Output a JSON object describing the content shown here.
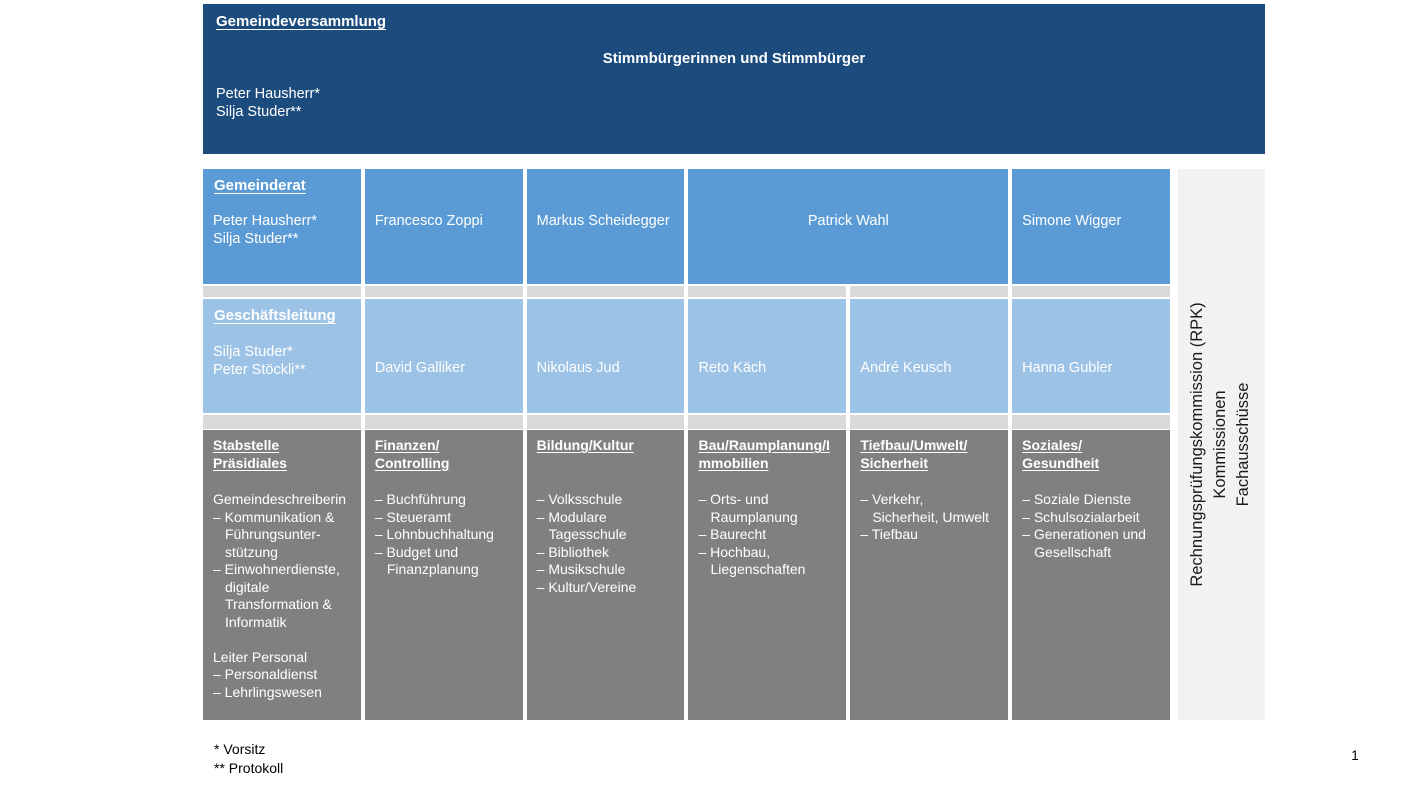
{
  "banner": {
    "title": "Gemeindeversammlung",
    "subtitle": "Stimmbürgerinnen und Stimmbürger",
    "names": [
      "Peter Hausherr*",
      "Silja Studer**"
    ]
  },
  "gemeinderat": {
    "title": "Gemeinderat",
    "leads": [
      "Peter Hausherr*",
      "Silja Studer**"
    ],
    "member2": "Francesco Zoppi",
    "member3": "Markus Scheidegger",
    "member4": "Patrick Wahl",
    "member5": "Simone Wigger"
  },
  "geschaeftsleitung": {
    "title": "Geschäftsleitung",
    "leads": [
      "Silja Studer*",
      "Peter Stöckli**"
    ],
    "member2": "David Galliker",
    "member3": "Nikolaus Jud",
    "member4": "Reto Käch",
    "member5": "André Keusch",
    "member6": "Hanna Gubler"
  },
  "departments": [
    {
      "title": [
        "Stabstelle",
        "Präsidiales"
      ],
      "items": [
        "Gemeindeschreiberin",
        "– Kommunikation &\nFührungsunter-\nstützung",
        "– Einwohnerdienste,\ndigitale\nTransformation &\nInformatik",
        "",
        "Leiter Personal",
        "– Personaldienst",
        "– Lehrlingswesen"
      ]
    },
    {
      "title": [
        "Finanzen/",
        "Controlling"
      ],
      "items": [
        "– Buchführung",
        "– Steueramt",
        "– Lohnbuchhaltung",
        "– Budget und\nFinanzplanung"
      ]
    },
    {
      "title": [
        "Bildung/Kultur"
      ],
      "items": [
        "– Volksschule",
        "– Modulare\nTagesschule",
        "– Bibliothek",
        "– Musikschule",
        "– Kultur/Vereine"
      ]
    },
    {
      "title": [
        "Bau/Raumplanung/I",
        "mmobilien"
      ],
      "items": [
        "– Orts- und\nRaumplanung",
        "– Baurecht",
        "– Hochbau,\nLiegenschaften"
      ]
    },
    {
      "title": [
        "Tiefbau/Umwelt/",
        "Sicherheit"
      ],
      "items": [
        "– Verkehr,\nSicherheit, Umwelt",
        "– Tiefbau"
      ]
    },
    {
      "title": [
        "Soziales/",
        "Gesundheit"
      ],
      "items": [
        "– Soziale Dienste",
        "– Schulsozialarbeit",
        "– Generationen und\nGesellschaft"
      ]
    }
  ],
  "side_panel": {
    "labels": [
      "Rechnungsprüfungskommission (RPK)",
      "Kommissionen",
      "Fachausschüsse"
    ]
  },
  "footnotes": [
    "* Vorsitz",
    "** Protokoll"
  ],
  "page_number": "1",
  "colors": {
    "banner_blue": "#1c4b7d",
    "gemeinderat_blue": "#5b9bd5",
    "geschaeftsleitung_blue": "#9cc2e5",
    "department_gray": "#808080",
    "connector_gray": "#d9d9d9",
    "side_panel_gray": "#f2f2f2"
  }
}
